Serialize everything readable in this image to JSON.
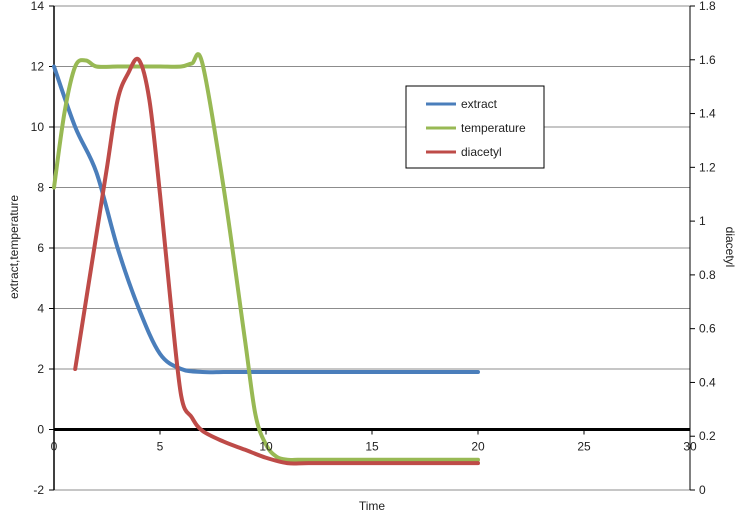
{
  "chart_data": {
    "type": "line",
    "title": "",
    "xlabel": "Time",
    "ylabel": "extract,temperature",
    "y2label": "diacetyl",
    "xlim": [
      0,
      30
    ],
    "ylim": [
      -2,
      14
    ],
    "y2lim": [
      0,
      1.8
    ],
    "xticks": [
      "0",
      "5",
      "10",
      "15",
      "20",
      "25",
      "30"
    ],
    "yticks": [
      "-2",
      "0",
      "2",
      "4",
      "6",
      "8",
      "10",
      "12",
      "14"
    ],
    "y2ticks": [
      "0",
      "0.2",
      "0.4",
      "0.6",
      "0.8",
      "1",
      "1.2",
      "1.4",
      "1.6",
      "1.8"
    ],
    "grid": "horizontal",
    "legend_position": "top-right",
    "series": [
      {
        "name": "extract",
        "color": "#4a7ebb",
        "axis": "left",
        "x": [
          0,
          1,
          2,
          3,
          4,
          5,
          6,
          7,
          8,
          9,
          10,
          12,
          14,
          16,
          18,
          20
        ],
        "y": [
          12,
          10,
          8.5,
          6,
          4,
          2.5,
          2,
          1.9,
          1.9,
          1.9,
          1.9,
          1.9,
          1.9,
          1.9,
          1.9,
          1.9
        ]
      },
      {
        "name": "temperature",
        "color": "#98b954",
        "axis": "left",
        "x": [
          0,
          0.5,
          1,
          1.5,
          2,
          3,
          4,
          5,
          6,
          6.5,
          7,
          8,
          9,
          9.5,
          10,
          10.5,
          11,
          11.5,
          12,
          14,
          16,
          18,
          20
        ],
        "y": [
          8,
          10.5,
          12,
          12.2,
          12,
          12,
          12,
          12,
          12,
          12.1,
          12.1,
          8,
          3,
          0.5,
          -0.5,
          -0.9,
          -1,
          -1,
          -1,
          -1,
          -1,
          -1,
          -1
        ]
      },
      {
        "name": "diacetyl",
        "color": "#be4b48",
        "axis": "right",
        "x": [
          1,
          2,
          2.5,
          3,
          3.5,
          4,
          4.5,
          5,
          5.5,
          6,
          6.5,
          7,
          8,
          9,
          10,
          11,
          12,
          14,
          16,
          18,
          20
        ],
        "y": [
          0.45,
          0.95,
          1.2,
          1.45,
          1.55,
          1.6,
          1.45,
          1.1,
          0.7,
          0.35,
          0.27,
          0.22,
          0.18,
          0.15,
          0.12,
          0.1,
          0.1,
          0.1,
          0.1,
          0.1,
          0.1
        ]
      }
    ]
  }
}
